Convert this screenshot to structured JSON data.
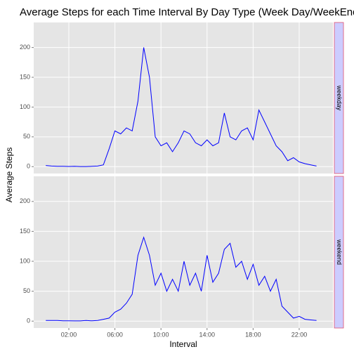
{
  "chart_data": {
    "type": "line",
    "title": "Average Steps for each Time Interval By Day Type (Week Day/WeekEnd",
    "xlabel": "Interval",
    "ylabel": "Average Steps",
    "color": "#0000ff",
    "xlim": [
      -1.05,
      24.93
    ],
    "ylim": [
      -11.5,
      242
    ],
    "xticks": [
      {
        "value": 2,
        "label": "02:00"
      },
      {
        "value": 6,
        "label": "06:00"
      },
      {
        "value": 10,
        "label": "10:00"
      },
      {
        "value": 14,
        "label": "14:00"
      },
      {
        "value": 18,
        "label": "18:00"
      },
      {
        "value": 22,
        "label": "22:00"
      }
    ],
    "yticks": [
      0,
      50,
      100,
      150,
      200
    ],
    "x": [
      0,
      0.5,
      1,
      1.5,
      2,
      2.5,
      3,
      3.5,
      4,
      4.5,
      5,
      5.5,
      6,
      6.5,
      7,
      7.5,
      8,
      8.5,
      9,
      9.5,
      10,
      10.5,
      11,
      11.5,
      12,
      12.5,
      13,
      13.5,
      14,
      14.5,
      15,
      15.5,
      16,
      16.5,
      17,
      17.5,
      18,
      18.5,
      19,
      19.5,
      20,
      20.5,
      21,
      21.5,
      22,
      22.5,
      23,
      23.5
    ],
    "panels": [
      {
        "name": "weekday",
        "values": [
          2,
          1,
          0.5,
          0.5,
          0.3,
          0.5,
          0.2,
          0.2,
          0.5,
          1,
          3,
          30,
          60,
          55,
          65,
          60,
          110,
          200,
          150,
          50,
          35,
          40,
          25,
          40,
          60,
          55,
          40,
          35,
          45,
          35,
          40,
          90,
          50,
          45,
          60,
          65,
          45,
          95,
          75,
          55,
          35,
          25,
          10,
          15,
          8,
          5,
          3,
          1
        ]
      },
      {
        "name": "weekend",
        "values": [
          1,
          1,
          1,
          0.5,
          0.5,
          0.3,
          0.3,
          1,
          0.5,
          1,
          3,
          5,
          15,
          20,
          30,
          45,
          110,
          140,
          110,
          60,
          80,
          50,
          70,
          50,
          100,
          60,
          80,
          50,
          110,
          65,
          80,
          120,
          130,
          90,
          100,
          70,
          95,
          60,
          75,
          50,
          70,
          25,
          15,
          5,
          8,
          3,
          2,
          1
        ]
      }
    ]
  }
}
